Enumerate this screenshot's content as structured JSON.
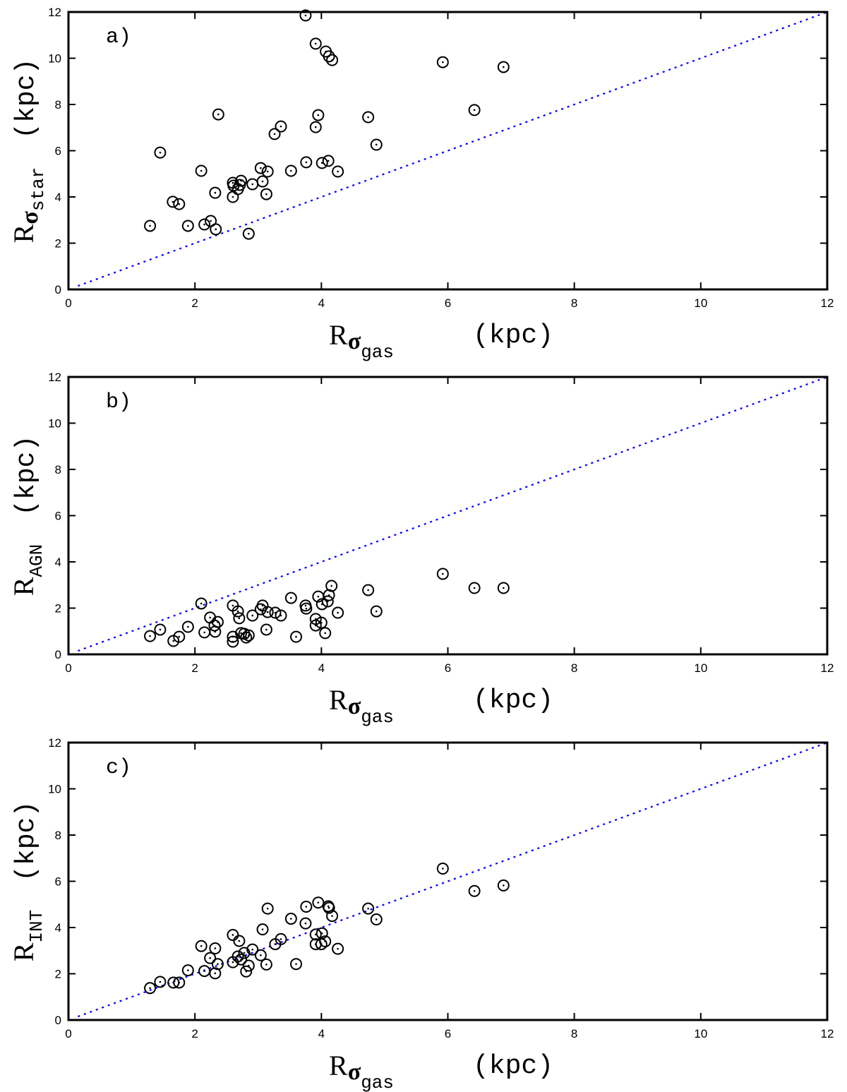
{
  "chart_data": [
    {
      "type": "scatter",
      "panel_label": "a)",
      "x_label": {
        "main": "R",
        "symbol": "σ",
        "sub": "gas",
        "unit": "(kpc)"
      },
      "y_label": {
        "main": "R",
        "symbol": "σ",
        "sub": "star",
        "unit": "(kpc)"
      },
      "x": [
        3.75,
        3.91,
        4.07,
        4.12,
        4.17,
        5.92,
        6.88,
        2.37,
        3.95,
        4.74,
        6.42,
        3.36,
        3.91,
        3.26,
        4.87,
        1.45,
        2.1,
        3.04,
        3.76,
        4.01,
        4.11,
        4.26,
        3.52,
        3.15,
        2.73,
        3.07,
        2.6,
        2.61,
        2.68,
        2.71,
        2.91,
        2.32,
        3.13,
        2.6,
        1.65,
        1.75,
        1.29,
        1.89,
        2.15,
        2.25,
        2.33,
        2.85
      ],
      "y": [
        11.85,
        10.63,
        10.29,
        10.08,
        9.92,
        9.83,
        9.62,
        7.57,
        7.54,
        7.45,
        7.76,
        7.05,
        7.02,
        6.72,
        6.26,
        5.92,
        5.13,
        5.25,
        5.5,
        5.47,
        5.56,
        5.1,
        5.13,
        5.1,
        4.7,
        4.67,
        4.61,
        4.49,
        4.34,
        4.52,
        4.55,
        4.18,
        4.12,
        4.0,
        3.79,
        3.69,
        2.75,
        2.75,
        2.81,
        2.96,
        2.6,
        2.41
      ],
      "xlim": [
        0,
        12
      ],
      "ylim": [
        0,
        12
      ],
      "xticks": [
        0,
        2,
        4,
        6,
        8,
        10,
        12
      ],
      "yticks": [
        0,
        2,
        4,
        6,
        8,
        10,
        12
      ],
      "marker_color": "#000000",
      "reference_line": {
        "x": [
          0.15,
          12
        ],
        "y": [
          0.15,
          12
        ],
        "color": "#0000ff"
      }
    },
    {
      "type": "scatter",
      "panel_label": "b)",
      "x_label": {
        "main": "R",
        "symbol": "σ",
        "sub": "gas",
        "unit": "(kpc)"
      },
      "y_label": {
        "main": "R",
        "sub": "AGN",
        "unit": "(kpc)"
      },
      "x": [
        5.92,
        6.42,
        6.88,
        4.16,
        4.74,
        2.1,
        2.6,
        3.52,
        3.95,
        4.12,
        3.07,
        4.1,
        4.01,
        3.75,
        3.76,
        3.04,
        3.15,
        3.27,
        2.68,
        4.87,
        4.26,
        3.36,
        2.91,
        2.24,
        2.7,
        3.91,
        1.45,
        1.89,
        2.36,
        2.31,
        3.91,
        4.0,
        3.13,
        2.32,
        2.15,
        2.73,
        1.29,
        1.75,
        2.78,
        2.85,
        2.81,
        2.6,
        3.6,
        4.06,
        1.66,
        2.6
      ],
      "y": [
        3.48,
        2.87,
        2.87,
        2.96,
        2.78,
        2.2,
        2.11,
        2.44,
        2.5,
        2.56,
        2.11,
        2.29,
        2.17,
        2.11,
        1.98,
        1.95,
        1.83,
        1.8,
        1.86,
        1.86,
        1.8,
        1.68,
        1.68,
        1.59,
        1.56,
        1.53,
        1.07,
        1.19,
        1.4,
        1.25,
        1.25,
        1.37,
        1.07,
        0.98,
        0.95,
        0.92,
        0.79,
        0.76,
        0.89,
        0.82,
        0.73,
        0.76,
        0.76,
        0.92,
        0.58,
        0.55
      ],
      "xlim": [
        0,
        12
      ],
      "ylim": [
        0,
        12
      ],
      "xticks": [
        0,
        2,
        4,
        6,
        8,
        10,
        12
      ],
      "yticks": [
        0,
        2,
        4,
        6,
        8,
        10,
        12
      ],
      "marker_color": "#000000",
      "reference_line": {
        "x": [
          0.15,
          12
        ],
        "y": [
          0.15,
          12
        ],
        "color": "#0000ff"
      }
    },
    {
      "type": "scatter",
      "panel_label": "c)",
      "x_label": {
        "main": "R",
        "symbol": "σ",
        "sub": "gas",
        "unit": "(kpc)"
      },
      "y_label": {
        "main": "R",
        "sub": "INT",
        "unit": "(kpc)"
      },
      "x": [
        5.92,
        6.42,
        6.88,
        4.74,
        4.87,
        3.15,
        3.95,
        3.76,
        4.11,
        4.12,
        4.17,
        3.52,
        3.75,
        3.07,
        2.6,
        2.7,
        2.1,
        2.32,
        3.91,
        4.01,
        3.36,
        3.27,
        4.06,
        3.91,
        4.0,
        2.91,
        4.26,
        2.78,
        3.04,
        2.68,
        2.24,
        2.73,
        2.6,
        2.36,
        2.85,
        3.13,
        3.6,
        1.89,
        2.15,
        2.81,
        2.32,
        1.45,
        1.66,
        1.75,
        1.29
      ],
      "y": [
        6.55,
        5.58,
        5.82,
        4.82,
        4.35,
        4.82,
        5.08,
        4.9,
        4.92,
        4.85,
        4.5,
        4.38,
        4.18,
        3.92,
        3.68,
        3.42,
        3.2,
        3.1,
        3.7,
        3.75,
        3.5,
        3.28,
        3.4,
        3.28,
        3.28,
        3.05,
        3.08,
        2.9,
        2.8,
        2.75,
        2.68,
        2.62,
        2.5,
        2.42,
        2.35,
        2.4,
        2.42,
        2.15,
        2.12,
        2.1,
        2.02,
        1.65,
        1.62,
        1.62,
        1.38
      ],
      "xlim": [
        0,
        12
      ],
      "ylim": [
        0,
        12
      ],
      "xticks": [
        0,
        2,
        4,
        6,
        8,
        10,
        12
      ],
      "yticks": [
        0,
        2,
        4,
        6,
        8,
        10,
        12
      ],
      "marker_color": "#000000",
      "reference_line": {
        "x": [
          0.15,
          12
        ],
        "y": [
          0.15,
          12
        ],
        "color": "#0000ff"
      }
    }
  ]
}
